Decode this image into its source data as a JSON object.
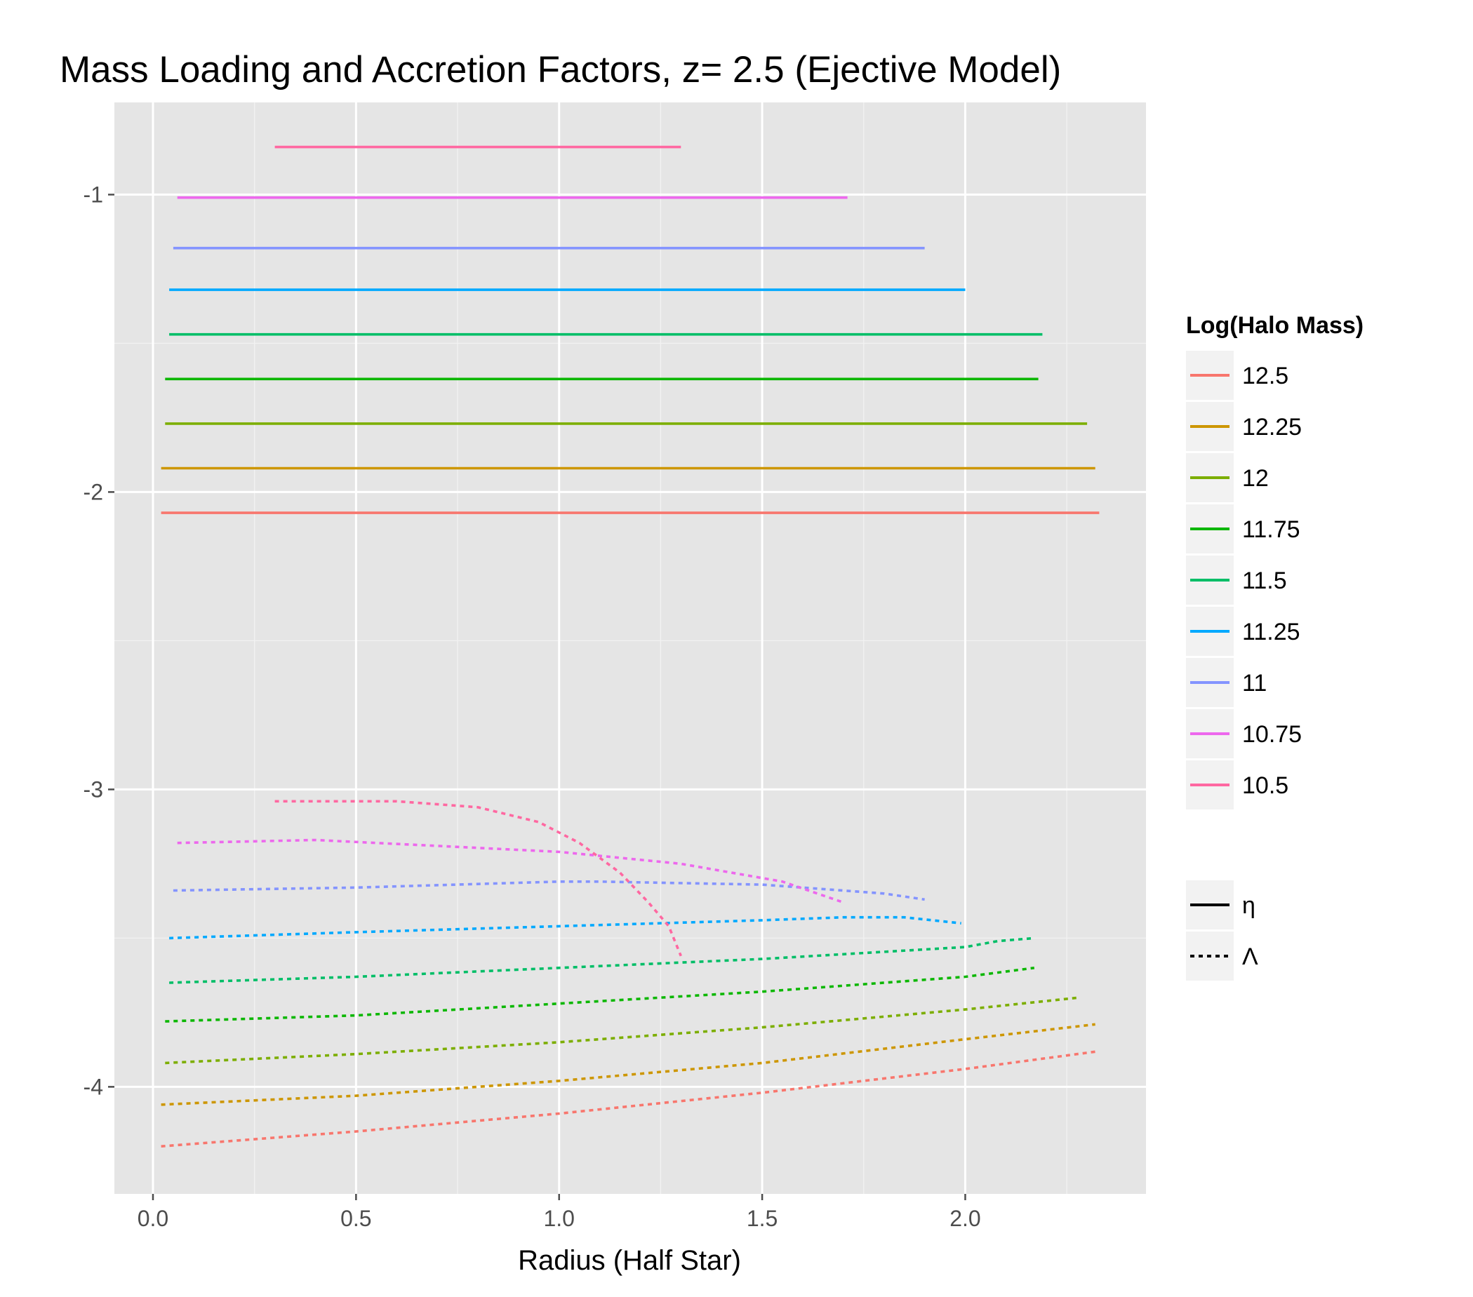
{
  "chart_data": {
    "type": "line",
    "title": "Mass Loading and Accretion Factors, z= 2.5 (Ejective Model)",
    "xlabel": "Radius (Half Star)",
    "ylabel": "",
    "xlim": [
      -0.095,
      2.445
    ],
    "ylim": [
      -4.36,
      -0.69
    ],
    "xticks": [
      0.0,
      0.5,
      1.0,
      1.5,
      2.0
    ],
    "xtick_labels": [
      "0.0",
      "0.5",
      "1.0",
      "1.5",
      "2.0"
    ],
    "yticks": [
      -1,
      -2,
      -3,
      -4
    ],
    "ytick_labels": [
      "-1",
      "-2",
      "-3",
      "-4"
    ],
    "grid": true,
    "legend_position": "right",
    "legend_color_title": "Log(Halo Mass)",
    "legend_linetype_entries": [
      {
        "label": "η",
        "dash": "solid"
      },
      {
        "label": "Λ",
        "dash": "dotted"
      }
    ],
    "series": [
      {
        "name": "12.5",
        "color": "#F8766D",
        "eta": {
          "x": [
            0.02,
            2.33
          ],
          "y": [
            -2.07,
            -2.07
          ]
        },
        "lambda": {
          "x": [
            0.02,
            0.5,
            1.0,
            1.5,
            2.0,
            2.33
          ],
          "y": [
            -4.2,
            -4.15,
            -4.09,
            -4.02,
            -3.94,
            -3.88
          ]
        }
      },
      {
        "name": "12.25",
        "color": "#CD9600",
        "eta": {
          "x": [
            0.02,
            2.32
          ],
          "y": [
            -1.92,
            -1.92
          ]
        },
        "lambda": {
          "x": [
            0.02,
            0.5,
            1.0,
            1.5,
            2.0,
            2.32
          ],
          "y": [
            -4.06,
            -4.03,
            -3.98,
            -3.92,
            -3.84,
            -3.79
          ]
        }
      },
      {
        "name": "12",
        "color": "#7CAE00",
        "eta": {
          "x": [
            0.03,
            2.3
          ],
          "y": [
            -1.77,
            -1.77
          ]
        },
        "lambda": {
          "x": [
            0.03,
            0.5,
            1.0,
            1.5,
            2.0,
            2.28
          ],
          "y": [
            -3.92,
            -3.89,
            -3.85,
            -3.8,
            -3.74,
            -3.7
          ]
        }
      },
      {
        "name": "11.75",
        "color": "#0CB702",
        "eta": {
          "x": [
            0.03,
            2.18
          ],
          "y": [
            -1.62,
            -1.62
          ]
        },
        "lambda": {
          "x": [
            0.03,
            0.5,
            1.0,
            1.5,
            2.0,
            2.17
          ],
          "y": [
            -3.78,
            -3.76,
            -3.72,
            -3.68,
            -3.63,
            -3.6
          ]
        }
      },
      {
        "name": "11.5",
        "color": "#00BE67",
        "eta": {
          "x": [
            0.04,
            2.19
          ],
          "y": [
            -1.47,
            -1.47
          ]
        },
        "lambda": {
          "x": [
            0.04,
            0.5,
            1.0,
            1.5,
            2.0,
            2.08,
            2.17
          ],
          "y": [
            -3.65,
            -3.63,
            -3.6,
            -3.57,
            -3.53,
            -3.51,
            -3.5
          ]
        }
      },
      {
        "name": "11.25",
        "color": "#00A9FF",
        "eta": {
          "x": [
            0.04,
            2.0
          ],
          "y": [
            -1.32,
            -1.32
          ]
        },
        "lambda": {
          "x": [
            0.04,
            0.5,
            1.0,
            1.5,
            1.7,
            1.85,
            1.99
          ],
          "y": [
            -3.5,
            -3.48,
            -3.46,
            -3.44,
            -3.43,
            -3.43,
            -3.45
          ]
        }
      },
      {
        "name": "11",
        "color": "#8494FF",
        "eta": {
          "x": [
            0.05,
            1.9
          ],
          "y": [
            -1.18,
            -1.18
          ]
        },
        "lambda": {
          "x": [
            0.05,
            0.5,
            1.0,
            1.1,
            1.5,
            1.8,
            1.9
          ],
          "y": [
            -3.34,
            -3.33,
            -3.31,
            -3.31,
            -3.32,
            -3.35,
            -3.37
          ]
        }
      },
      {
        "name": "10.75",
        "color": "#ED68ED",
        "eta": {
          "x": [
            0.06,
            1.71
          ],
          "y": [
            -1.01,
            -1.01
          ]
        },
        "lambda": {
          "x": [
            0.06,
            0.4,
            0.7,
            1.0,
            1.3,
            1.55,
            1.7
          ],
          "y": [
            -3.18,
            -3.17,
            -3.19,
            -3.21,
            -3.25,
            -3.31,
            -3.38
          ]
        }
      },
      {
        "name": "10.5",
        "color": "#FF68A1",
        "eta": {
          "x": [
            0.3,
            1.3
          ],
          "y": [
            -0.84,
            -0.84
          ]
        },
        "lambda": {
          "x": [
            0.3,
            0.6,
            0.8,
            0.95,
            1.05,
            1.15,
            1.22,
            1.27,
            1.3
          ],
          "y": [
            -3.04,
            -3.04,
            -3.06,
            -3.11,
            -3.18,
            -3.28,
            -3.38,
            -3.46,
            -3.56
          ]
        }
      }
    ]
  }
}
